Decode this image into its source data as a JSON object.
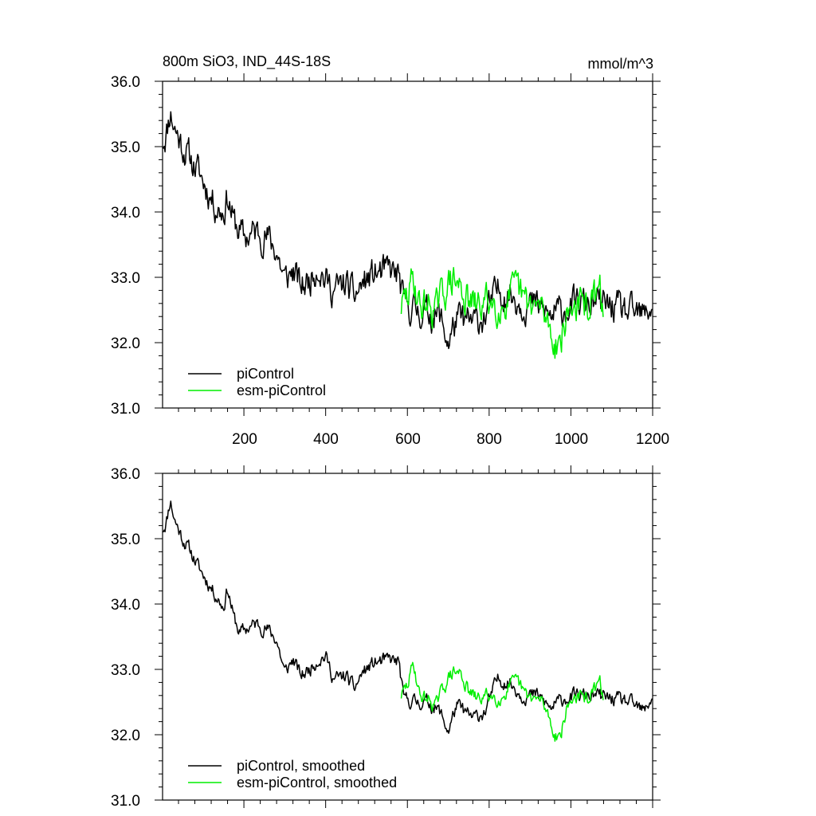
{
  "colors": {
    "piControl": "#000000",
    "esm_piControl": "#00ee00"
  },
  "chart_data": [
    {
      "type": "line",
      "title": "800m SiO3, IND_44S-18S",
      "units": "mmol/m^3",
      "xlim": [
        1,
        1200
      ],
      "ylim": [
        31.0,
        36.0
      ],
      "y_ticks": [
        31.0,
        32.0,
        33.0,
        34.0,
        35.0,
        36.0
      ],
      "x_ticks": [
        200,
        400,
        600,
        800,
        1000,
        1200
      ],
      "y_tick_labels": [
        "31.0",
        "32.0",
        "33.0",
        "34.0",
        "35.0",
        "36.0"
      ],
      "x_tick_labels": [
        "200",
        "400",
        "600",
        "800",
        "1000",
        "1200"
      ],
      "legend": [
        "piControl",
        "esm-piControl"
      ],
      "legend_position": "bottom-left",
      "series": [
        {
          "name": "piControl",
          "x_range": [
            1,
            1200
          ],
          "anchors": [
            [
              1,
              35.1
            ],
            [
              10,
              35.2
            ],
            [
              20,
              35.55
            ],
            [
              30,
              35.3
            ],
            [
              50,
              35.0
            ],
            [
              70,
              34.8
            ],
            [
              90,
              34.6
            ],
            [
              110,
              34.35
            ],
            [
              130,
              34.1
            ],
            [
              150,
              34.0
            ],
            [
              160,
              34.25
            ],
            [
              175,
              33.85
            ],
            [
              200,
              33.6
            ],
            [
              230,
              33.7
            ],
            [
              260,
              33.6
            ],
            [
              280,
              33.4
            ],
            [
              300,
              32.95
            ],
            [
              320,
              33.1
            ],
            [
              340,
              32.85
            ],
            [
              360,
              32.95
            ],
            [
              380,
              33.2
            ],
            [
              400,
              32.95
            ],
            [
              420,
              32.8
            ],
            [
              450,
              32.9
            ],
            [
              470,
              32.7
            ],
            [
              490,
              32.9
            ],
            [
              520,
              33.05
            ],
            [
              560,
              33.1
            ],
            [
              580,
              33.0
            ],
            [
              590,
              32.6
            ],
            [
              620,
              32.5
            ],
            [
              650,
              32.45
            ],
            [
              680,
              32.4
            ],
            [
              700,
              32.0
            ],
            [
              720,
              32.35
            ],
            [
              760,
              32.3
            ],
            [
              790,
              32.4
            ],
            [
              820,
              32.8
            ],
            [
              850,
              32.75
            ],
            [
              880,
              32.6
            ],
            [
              920,
              32.55
            ],
            [
              950,
              32.4
            ],
            [
              980,
              32.5
            ],
            [
              1020,
              32.6
            ],
            [
              1060,
              32.6
            ],
            [
              1100,
              32.55
            ],
            [
              1140,
              32.45
            ],
            [
              1180,
              32.4
            ],
            [
              1200,
              32.6
            ]
          ],
          "noise": 0.2,
          "seed": 11
        },
        {
          "name": "esm-piControl",
          "x_range": [
            585,
            1080
          ],
          "anchors": [
            [
              585,
              32.55
            ],
            [
              600,
              32.7
            ],
            [
              615,
              33.0
            ],
            [
              630,
              32.55
            ],
            [
              650,
              32.6
            ],
            [
              670,
              32.5
            ],
            [
              690,
              32.8
            ],
            [
              710,
              32.95
            ],
            [
              730,
              32.85
            ],
            [
              750,
              32.6
            ],
            [
              770,
              32.55
            ],
            [
              800,
              32.65
            ],
            [
              830,
              32.55
            ],
            [
              850,
              32.7
            ],
            [
              870,
              32.8
            ],
            [
              890,
              32.6
            ],
            [
              910,
              32.55
            ],
            [
              930,
              32.5
            ],
            [
              945,
              32.3
            ],
            [
              960,
              32.0
            ],
            [
              975,
              32.05
            ],
            [
              990,
              32.4
            ],
            [
              1010,
              32.6
            ],
            [
              1030,
              32.55
            ],
            [
              1050,
              32.6
            ],
            [
              1070,
              32.75
            ],
            [
              1080,
              32.6
            ]
          ],
          "noise": 0.22,
          "seed": 29
        }
      ]
    },
    {
      "type": "line",
      "xlim": [
        1,
        1200
      ],
      "ylim": [
        31.0,
        36.0
      ],
      "y_ticks": [
        31.0,
        32.0,
        33.0,
        34.0,
        35.0,
        36.0
      ],
      "x_ticks": [
        200,
        400,
        600,
        800,
        1000,
        1200
      ],
      "y_tick_labels": [
        "31.0",
        "32.0",
        "33.0",
        "34.0",
        "35.0",
        "36.0"
      ],
      "legend": [
        "piControl, smoothed",
        "esm-piControl, smoothed"
      ],
      "legend_position": "bottom-left",
      "series": [
        {
          "name": "piControl, smoothed",
          "x_range": [
            1,
            1200
          ],
          "anchors": [
            [
              1,
              35.15
            ],
            [
              10,
              35.25
            ],
            [
              20,
              35.6
            ],
            [
              30,
              35.3
            ],
            [
              50,
              35.0
            ],
            [
              70,
              34.8
            ],
            [
              90,
              34.55
            ],
            [
              110,
              34.35
            ],
            [
              130,
              34.15
            ],
            [
              150,
              33.95
            ],
            [
              160,
              34.25
            ],
            [
              175,
              33.8
            ],
            [
              190,
              33.55
            ],
            [
              200,
              33.6
            ],
            [
              230,
              33.7
            ],
            [
              260,
              33.6
            ],
            [
              280,
              33.45
            ],
            [
              300,
              32.95
            ],
            [
              320,
              33.15
            ],
            [
              340,
              32.9
            ],
            [
              360,
              33.0
            ],
            [
              380,
              33.15
            ],
            [
              400,
              33.2
            ],
            [
              420,
              32.85
            ],
            [
              450,
              32.9
            ],
            [
              470,
              32.7
            ],
            [
              490,
              32.95
            ],
            [
              520,
              33.1
            ],
            [
              560,
              33.15
            ],
            [
              580,
              33.1
            ],
            [
              590,
              32.55
            ],
            [
              620,
              32.5
            ],
            [
              650,
              32.5
            ],
            [
              680,
              32.35
            ],
            [
              700,
              32.05
            ],
            [
              720,
              32.45
            ],
            [
              760,
              32.25
            ],
            [
              790,
              32.35
            ],
            [
              820,
              32.85
            ],
            [
              850,
              32.8
            ],
            [
              880,
              32.6
            ],
            [
              920,
              32.6
            ],
            [
              950,
              32.4
            ],
            [
              980,
              32.55
            ],
            [
              1020,
              32.6
            ],
            [
              1060,
              32.6
            ],
            [
              1100,
              32.55
            ],
            [
              1140,
              32.5
            ],
            [
              1180,
              32.35
            ],
            [
              1200,
              32.6
            ]
          ],
          "noise": 0.09,
          "seed": 11
        },
        {
          "name": "esm-piControl, smoothed",
          "x_range": [
            585,
            1080
          ],
          "anchors": [
            [
              585,
              32.6
            ],
            [
              600,
              32.75
            ],
            [
              615,
              33.1
            ],
            [
              630,
              32.6
            ],
            [
              650,
              32.55
            ],
            [
              670,
              32.45
            ],
            [
              690,
              32.75
            ],
            [
              710,
              32.95
            ],
            [
              730,
              32.95
            ],
            [
              750,
              32.65
            ],
            [
              770,
              32.55
            ],
            [
              800,
              32.6
            ],
            [
              830,
              32.55
            ],
            [
              850,
              32.75
            ],
            [
              870,
              32.8
            ],
            [
              890,
              32.6
            ],
            [
              910,
              32.55
            ],
            [
              930,
              32.5
            ],
            [
              945,
              32.3
            ],
            [
              960,
              32.0
            ],
            [
              975,
              32.0
            ],
            [
              990,
              32.4
            ],
            [
              1010,
              32.6
            ],
            [
              1030,
              32.55
            ],
            [
              1050,
              32.6
            ],
            [
              1070,
              32.8
            ],
            [
              1080,
              32.6
            ]
          ],
          "noise": 0.09,
          "seed": 29
        }
      ]
    }
  ]
}
